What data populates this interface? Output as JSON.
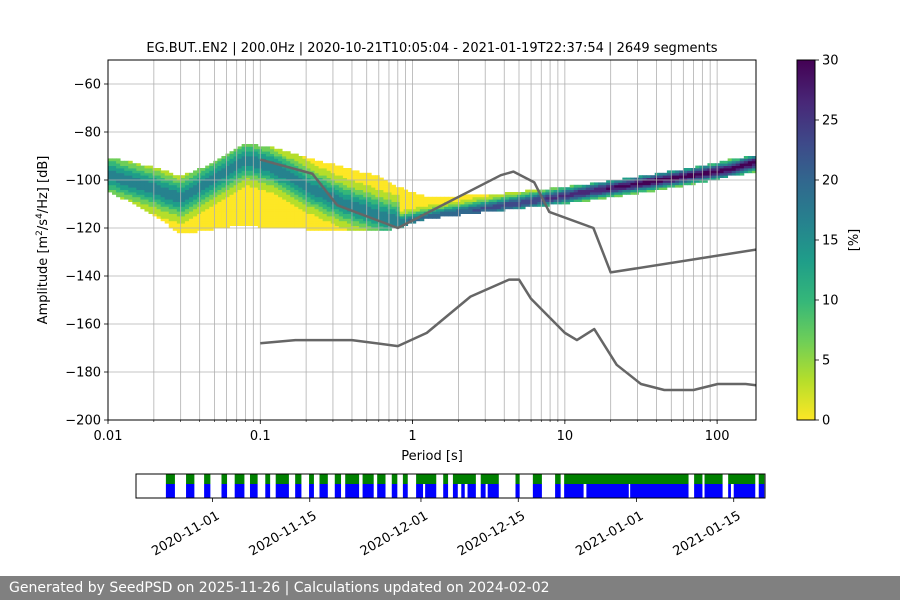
{
  "chart_data": {
    "type": "heatmap",
    "title": "EG.BUT..EN2 | 200.0Hz | 2020-10-21T10:05:04 - 2021-01-19T22:37:54 | 2649 segments",
    "xlabel": "Period [s]",
    "ylabel_main": "Amplitude [m",
    "ylabel_sup1": "2",
    "ylabel_mid1": "/s",
    "ylabel_sup2": "4",
    "ylabel_end": "/Hz] [dB]",
    "x_scale": "log",
    "xlim": [
      0.01,
      180
    ],
    "ylim": [
      -200,
      -50
    ],
    "x_ticks": [
      0.01,
      0.1,
      1,
      10,
      100
    ],
    "x_tick_labels": [
      "0.01",
      "0.1",
      "1",
      "10",
      "100"
    ],
    "y_ticks": [
      -60,
      -80,
      -100,
      -120,
      -140,
      -160,
      -180,
      -200
    ],
    "y_tick_labels": [
      "−60",
      "−80",
      "−100",
      "−120",
      "−140",
      "−160",
      "−180",
      "−200"
    ],
    "grid": true,
    "colorbar": {
      "label": "[%]",
      "range": [
        0,
        30
      ],
      "ticks": [
        0,
        5,
        10,
        15,
        20,
        25,
        30
      ],
      "tick_labels": [
        "0",
        "5",
        "10",
        "15",
        "20",
        "25",
        "30"
      ],
      "colormap": [
        "#fde725",
        "#b5de2b",
        "#6ece58",
        "#35b779",
        "#1f9e89",
        "#26828e",
        "#31688e",
        "#3e4989",
        "#482878",
        "#440154"
      ]
    },
    "psd_band": {
      "period": [
        0.01,
        0.02,
        0.03,
        0.05,
        0.08,
        0.12,
        0.2,
        0.35,
        0.6,
        0.85,
        1.2,
        2,
        4,
        8,
        15,
        30,
        60,
        120,
        180
      ],
      "upper": [
        -92,
        -96,
        -100,
        -94,
        -86,
        -88,
        -92,
        -96,
        -100,
        -105,
        -108,
        -108,
        -107,
        -105,
        -103,
        -100,
        -97,
        -93,
        -91
      ],
      "lower": [
        -104,
        -114,
        -122,
        -120,
        -118,
        -120,
        -120,
        -121,
        -121,
        -119,
        -116,
        -114,
        -112,
        -110,
        -108,
        -105,
        -102,
        -98,
        -96
      ],
      "mode": [
        -98,
        -104,
        -108,
        -100,
        -92,
        -95,
        -103,
        -110,
        -115,
        -118,
        -116,
        -114,
        -111,
        -108,
        -105,
        -102,
        -99,
        -96,
        -93
      ]
    },
    "overlay_lines": [
      {
        "name": "upper-reference",
        "x": [
          0.1,
          0.22,
          0.32,
          0.8,
          3.8,
          4.6,
          6.3,
          7.9,
          15.4,
          20,
          180
        ],
        "y": [
          -91.5,
          -97.4,
          -110.5,
          -120,
          -98,
          -96.5,
          -101,
          -113.3,
          -120,
          -138.5,
          -129
        ]
      },
      {
        "name": "lower-reference",
        "x": [
          0.1,
          0.17,
          0.4,
          0.8,
          1.24,
          2.4,
          4.3,
          5.0,
          6.0,
          10,
          12,
          15.6,
          21.9,
          31.6,
          45,
          70,
          101,
          154,
          180
        ],
        "y": [
          -168,
          -166.7,
          -166.7,
          -169.2,
          -163.7,
          -148.6,
          -141.5,
          -141.5,
          -149.5,
          -163.7,
          -166.7,
          -162.1,
          -177,
          -185,
          -187.5,
          -187.5,
          -185,
          -185,
          -185.5
        ]
      }
    ],
    "timeline": {
      "tick_labels": [
        "2020-11-01",
        "2020-11-15",
        "2020-12-01",
        "2020-12-15",
        "2021-01-01",
        "2021-01-15"
      ],
      "tick_values": [
        11,
        25,
        41,
        55,
        72,
        86
      ],
      "start_day": 0,
      "end_day": 90.5,
      "colors": {
        "data": "#0000ff",
        "gaps": "#008000"
      }
    }
  },
  "footer": {
    "text": "Generated by SeedPSD on 2025-11-26 | Calculations updated on 2024-02-02"
  }
}
